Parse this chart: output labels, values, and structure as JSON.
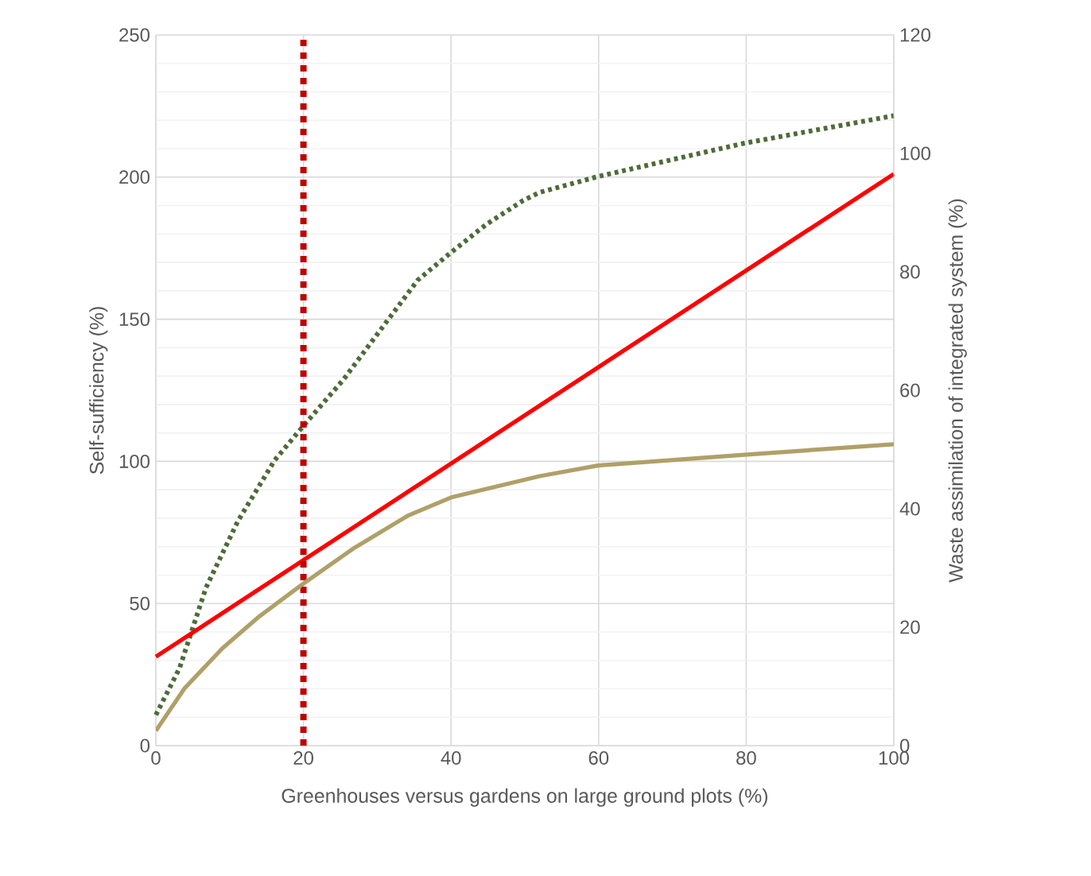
{
  "chart_data": {
    "type": "line",
    "xlabel": "Greenhouses versus gardens on large ground plots (%)",
    "ylabel": "Self-sufficiency (%)",
    "y2label": "Waste assimilation of integrated system (%)",
    "xlim": [
      0,
      100
    ],
    "xticks": [
      0,
      20,
      40,
      60,
      80,
      100
    ],
    "ylim": [
      0,
      250
    ],
    "yticks": [
      0,
      50,
      100,
      150,
      200,
      250
    ],
    "y2lim": [
      0,
      120
    ],
    "y2ticks": [
      0,
      20,
      40,
      60,
      80,
      100,
      120
    ],
    "grid": true,
    "marker": "none",
    "series": [
      {
        "color": "#4e6b3a",
        "line_style": "dotted",
        "x": [
          0,
          3.2,
          6.8,
          11.1,
          16.1,
          19.7,
          25.4,
          31.2,
          35.5,
          40,
          44.8,
          49.8,
          52,
          59.9,
          79.7,
          100
        ],
        "values": [
          10.8,
          27.2,
          55.6,
          78.9,
          100.4,
          111.6,
          128.7,
          148.9,
          163.8,
          173.5,
          183.4,
          191.8,
          194.6,
          200.2,
          211.9,
          221.6
        ]
      },
      {
        "color": "#ff0000",
        "line_style": "solid",
        "x": [
          0,
          100
        ],
        "values": [
          31.3,
          201.1
        ]
      },
      {
        "color": "#b0a068",
        "line_style": "solid",
        "axis": "y2",
        "x": [
          0,
          3.9,
          9,
          14,
          19.7,
          26.9,
          34.1,
          40,
          52,
          59.9,
          79.7,
          100
        ],
        "values": [
          2.5,
          9.7,
          16.4,
          21.8,
          27.1,
          33.4,
          38.8,
          41.9,
          45.5,
          47.3,
          49.1,
          50.9
        ]
      }
    ],
    "ref_lines": [
      {
        "axis": "x",
        "value": 20,
        "color": "#c00000",
        "line_style": "dotted"
      }
    ]
  }
}
